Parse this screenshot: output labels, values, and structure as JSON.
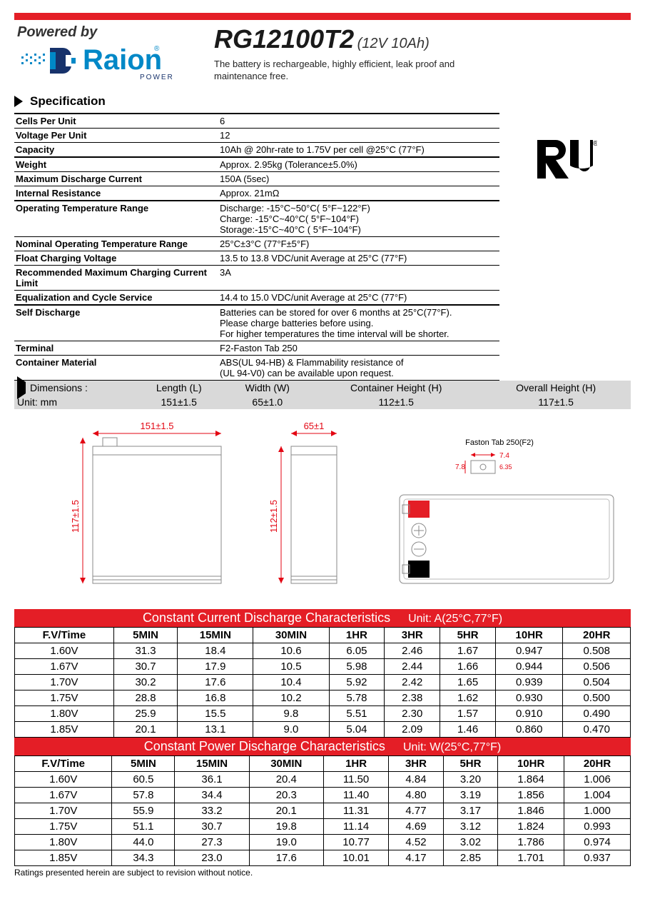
{
  "header": {
    "powered_by": "Powered by",
    "brand_name": "Raion",
    "brand_sub": "POWER",
    "model": "RG12100T2",
    "model_sub": "(12V 10Ah)",
    "desc_l1": "The battery is rechargeable, highly efficient, leak proof and",
    "desc_l2": " maintenance free."
  },
  "section_spec": "Specification",
  "cert_mark": "RU",
  "spec_rows": [
    {
      "k": "Cells Per Unit",
      "v": "6"
    },
    {
      "k": "Voltage Per Unit",
      "v": "12"
    },
    {
      "k": "Capacity",
      "v": "10Ah @ 20hr-rate to 1.75V per cell @25°C (77°F)"
    },
    {
      "k": "Weight",
      "v": "Approx. 2.95kg (Tolerance±5.0%)"
    },
    {
      "k": "Maximum Discharge Current",
      "v": "150A (5sec)"
    },
    {
      "k": "Internal Resistance",
      "v": "Approx. 21mΩ"
    },
    {
      "k": "Operating Temperature Range",
      "v": "Discharge: -15°C~50°C( 5°F~122°F)\nCharge: -15°C~40°C( 5°F~104°F)\nStorage:-15°C~40°C ( 5°F~104°F)"
    },
    {
      "k": "Nominal Operating Temperature Range",
      "v": " 25°C±3°C (77°F±5°F)"
    },
    {
      "k": "Float Charging Voltage",
      "v": "13.5 to 13.8 VDC/unit Average at 25°C (77°F)"
    },
    {
      "k": "Recommended Maximum Charging Current Limit",
      "v": "3A"
    },
    {
      "k": "Equalization and Cycle Service",
      "v": "14.4 to 15.0 VDC/unit Average at 25°C (77°F)"
    },
    {
      "k": "Self Discharge",
      "v": "Batteries can be stored for over 6 months at 25°C(77°F).\nPlease charge batteries before using.\nFor higher temperatures the time interval will be shorter."
    },
    {
      "k": "Terminal",
      "v": "F2-Faston Tab 250"
    },
    {
      "k": "Container Material",
      "v": "ABS(UL 94-HB) & Flammability resistance of\n(UL 94-V0) can be available upon request."
    }
  ],
  "dimensions": {
    "label": "Dimensions :",
    "unit_label": "Unit: mm",
    "headers": [
      "Length (L)",
      "Width (W)",
      "Container Height (H)",
      "Overall Height (H)"
    ],
    "values": [
      "151±1.5",
      "65±1.0",
      "112±1.5",
      "117±1.5"
    ]
  },
  "diagram": {
    "length": "151±1.5",
    "width": "65±1",
    "height_c": "112±1.5",
    "height_o": "117±1.5",
    "terminal_label": "Faston Tab 250(F2)",
    "t7_4": "7.4",
    "t7_8": "7.8",
    "t6_35": "6.35"
  },
  "discharge_current": {
    "title": "Constant Current Discharge Characteristics",
    "unit": "Unit: A(25°C,77°F)",
    "head": [
      "F.V/Time",
      "5MIN",
      "15MIN",
      "30MIN",
      "1HR",
      "3HR",
      "5HR",
      "10HR",
      "20HR"
    ],
    "rows": [
      [
        "1.60V",
        "31.3",
        "18.4",
        "10.6",
        "6.05",
        "2.46",
        "1.67",
        "0.947",
        "0.508"
      ],
      [
        "1.67V",
        "30.7",
        "17.9",
        "10.5",
        "5.98",
        "2.44",
        "1.66",
        "0.944",
        "0.506"
      ],
      [
        "1.70V",
        "30.2",
        "17.6",
        "10.4",
        "5.92",
        "2.42",
        "1.65",
        "0.939",
        "0.504"
      ],
      [
        "1.75V",
        "28.8",
        "16.8",
        "10.2",
        "5.78",
        "2.38",
        "1.62",
        "0.930",
        "0.500"
      ],
      [
        "1.80V",
        "25.9",
        "15.5",
        "9.8",
        "5.51",
        "2.30",
        "1.57",
        "0.910",
        "0.490"
      ],
      [
        "1.85V",
        "20.1",
        "13.1",
        "9.0",
        "5.04",
        "2.09",
        "1.46",
        "0.860",
        "0.470"
      ]
    ]
  },
  "discharge_power": {
    "title": "Constant Power Discharge Characteristics",
    "unit": "Unit: W(25°C,77°F)",
    "head": [
      "F.V/Time",
      "5MIN",
      "15MIN",
      "30MIN",
      "1HR",
      "3HR",
      "5HR",
      "10HR",
      "20HR"
    ],
    "rows": [
      [
        "1.60V",
        "60.5",
        "36.1",
        "20.4",
        "11.50",
        "4.84",
        "3.20",
        "1.864",
        "1.006"
      ],
      [
        "1.67V",
        "57.8",
        "34.4",
        "20.3",
        "11.40",
        "4.80",
        "3.19",
        "1.856",
        "1.004"
      ],
      [
        "1.70V",
        "55.9",
        "33.2",
        "20.1",
        "11.31",
        "4.77",
        "3.17",
        "1.846",
        "1.000"
      ],
      [
        "1.75V",
        "51.1",
        "30.7",
        "19.8",
        "11.14",
        "4.69",
        "3.12",
        "1.824",
        "0.993"
      ],
      [
        "1.80V",
        "44.0",
        "27.3",
        "19.0",
        "10.77",
        "4.52",
        "3.02",
        "1.786",
        "0.974"
      ],
      [
        "1.85V",
        "34.3",
        "23.0",
        "17.6",
        "10.01",
        "4.17",
        "2.85",
        "1.701",
        "0.937"
      ]
    ]
  },
  "footer": "Ratings presented herein are subject to revision without notice.",
  "colors": {
    "accent": "#e41e26",
    "logo": "#0088c7",
    "dim_red": "#e30613"
  }
}
